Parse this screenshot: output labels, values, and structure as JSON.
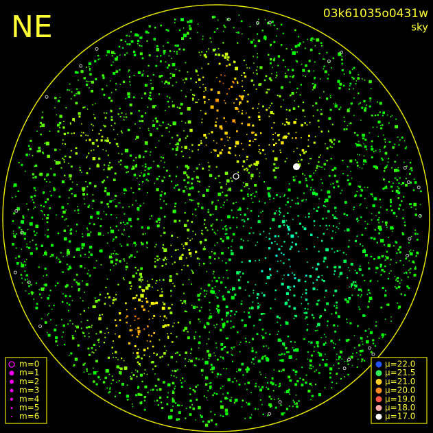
{
  "header": {
    "direction": "NE",
    "frame_id": "03k61035o0431w",
    "mode": "sky"
  },
  "magnitude_legend": [
    "m=0",
    "m=1",
    "m=2",
    "m=3",
    "m=4",
    "m=5",
    "m=6"
  ],
  "brightness_legend": [
    "μ=22.0",
    "μ=21.5",
    "μ=21.0",
    "μ=20.0",
    "μ=19.0",
    "μ=18.0",
    "μ=17.0"
  ]
}
